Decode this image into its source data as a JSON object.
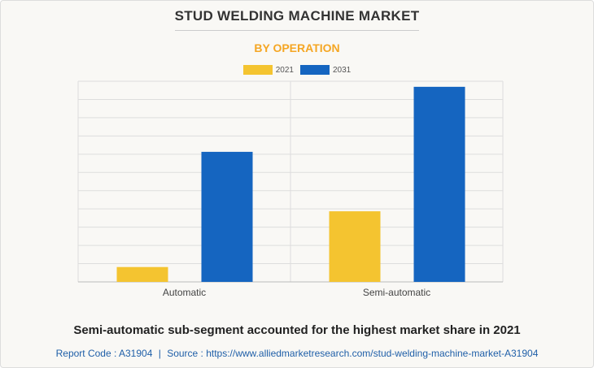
{
  "chart_data": {
    "type": "bar",
    "title": "STUD WELDING MACHINE MARKET",
    "subtitle": "BY OPERATION",
    "categories": [
      "Automatic",
      "Semi-automatic"
    ],
    "series": [
      {
        "name": "2021",
        "values": [
          0.8,
          3.8
        ],
        "color": "#f4c430"
      },
      {
        "name": "2031",
        "values": [
          7.0,
          10.5
        ],
        "color": "#1565c0"
      }
    ],
    "ylim": [
      0,
      10.8
    ],
    "grid": true,
    "legend": "top-center"
  },
  "caption": "Semi-automatic sub-segment accounted for the highest market share in 2021",
  "source": {
    "report_code": "Report Code : A31904",
    "separator": "|",
    "source_text": "Source : https://www.alliedmarketresearch.com/stud-welding-machine-market-A31904"
  },
  "colors": {
    "subtitle": "#f5a623",
    "source": "#1f5fa8",
    "grid": "#dddddd",
    "axis": "#bbbbbb"
  }
}
